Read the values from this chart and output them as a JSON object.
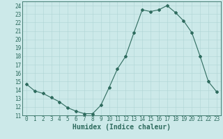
{
  "xlabel": "Humidex (Indice chaleur)",
  "x": [
    0,
    1,
    2,
    3,
    4,
    5,
    6,
    7,
    8,
    9,
    10,
    11,
    12,
    13,
    14,
    15,
    16,
    17,
    18,
    19,
    20,
    21,
    22,
    23
  ],
  "y": [
    14.7,
    13.9,
    13.6,
    13.1,
    12.6,
    11.9,
    11.5,
    11.2,
    11.2,
    12.2,
    14.3,
    16.5,
    18.0,
    20.8,
    23.5,
    23.3,
    23.5,
    24.0,
    23.2,
    22.2,
    20.8,
    18.0,
    15.0,
    13.8
  ],
  "line_color": "#2e6b5e",
  "marker": "D",
  "marker_size": 2.0,
  "bg_color": "#cce9e9",
  "grid_color": "#afd4d4",
  "ylim": [
    11,
    24.5
  ],
  "yticks": [
    11,
    12,
    13,
    14,
    15,
    16,
    17,
    18,
    19,
    20,
    21,
    22,
    23,
    24
  ],
  "xticks": [
    0,
    1,
    2,
    3,
    4,
    5,
    6,
    7,
    8,
    9,
    10,
    11,
    12,
    13,
    14,
    15,
    16,
    17,
    18,
    19,
    20,
    21,
    22,
    23
  ],
  "tick_fontsize": 5.5,
  "xlabel_fontsize": 7.0,
  "axis_color": "#2e6b5e",
  "linewidth": 0.8
}
